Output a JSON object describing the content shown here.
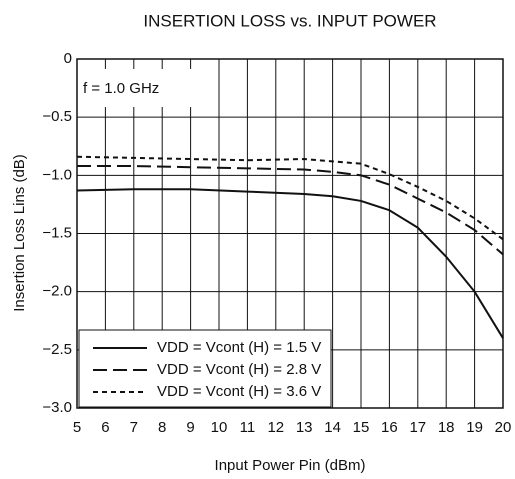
{
  "chart_data": {
    "type": "line",
    "title": "INSERTION LOSS vs. INPUT POWER",
    "x_label": "Input Power  Pin (dBm)",
    "y_label": "Insertion Loss  Lins (dB)",
    "annotation": "f = 1.0 GHz",
    "x": [
      5,
      7,
      9,
      11,
      13,
      14,
      15,
      16,
      17,
      18,
      19,
      20
    ],
    "series": [
      {
        "name": "VDD = Vcont (H) = 1.5 V",
        "color": "#111111",
        "linestyle": "solid",
        "values": [
          -1.13,
          -1.12,
          -1.12,
          -1.14,
          -1.16,
          -1.18,
          -1.22,
          -1.3,
          -1.45,
          -1.7,
          -2.0,
          -2.4
        ]
      },
      {
        "name": "VDD = Vcont (H) = 2.8 V",
        "color": "#111111",
        "linestyle": "dashed",
        "values": [
          -0.92,
          -0.92,
          -0.93,
          -0.94,
          -0.95,
          -0.97,
          -1.0,
          -1.08,
          -1.2,
          -1.32,
          -1.47,
          -1.68
        ]
      },
      {
        "name": "VDD = Vcont (H) = 3.6 V",
        "color": "#111111",
        "linestyle": "dotted",
        "values": [
          -0.84,
          -0.85,
          -0.86,
          -0.87,
          -0.86,
          -0.88,
          -0.9,
          -0.99,
          -1.1,
          -1.22,
          -1.37,
          -1.55
        ]
      }
    ],
    "xlim": [
      5,
      20
    ],
    "xticks": [
      5,
      6,
      7,
      8,
      9,
      10,
      11,
      12,
      13,
      14,
      15,
      16,
      17,
      18,
      19,
      20
    ],
    "ylim": [
      -3.0,
      0
    ],
    "yticks": [
      {
        "value": -3.0,
        "label": "−3.0"
      },
      {
        "value": -2.5,
        "label": "−2.5"
      },
      {
        "value": -2.0,
        "label": "−2.0"
      },
      {
        "value": -1.5,
        "label": "−1.5"
      },
      {
        "value": -1.0,
        "label": "−1.0"
      },
      {
        "value": -0.5,
        "label": "−0.5"
      },
      0
    ],
    "grid": true,
    "legend": "lower left"
  }
}
